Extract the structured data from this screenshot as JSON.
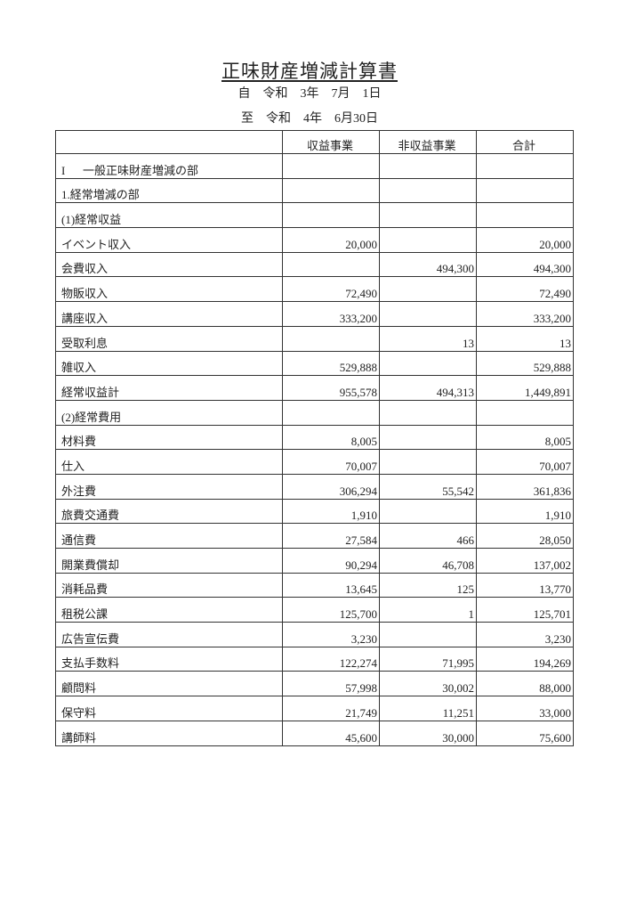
{
  "title": "正味財産増減計算書",
  "period": {
    "from": "自　令和　3年　7月　1日",
    "to": "至　令和　4年　6月30日"
  },
  "columns": [
    "",
    "収益事業",
    "非収益事業",
    "合計"
  ],
  "sections": {
    "section1": {
      "numeral": "I",
      "label": "一般正味財産増減の部"
    },
    "sub1": "1.経常増減の部",
    "income_header": "(1)経常収益",
    "expense_header": "(2)経常費用"
  },
  "income_rows": [
    {
      "label": "イベント収入",
      "profit": "20,000",
      "nonprofit": "",
      "total": "20,000"
    },
    {
      "label": "会費収入",
      "profit": "",
      "nonprofit": "494,300",
      "total": "494,300"
    },
    {
      "label": "物販収入",
      "profit": "72,490",
      "nonprofit": "",
      "total": "72,490"
    },
    {
      "label": "講座収入",
      "profit": "333,200",
      "nonprofit": "",
      "total": "333,200"
    },
    {
      "label": "受取利息",
      "profit": "",
      "nonprofit": "13",
      "total": "13"
    },
    {
      "label": "雑収入",
      "profit": "529,888",
      "nonprofit": "",
      "total": "529,888"
    }
  ],
  "income_total": {
    "label": "経常収益計",
    "profit": "955,578",
    "nonprofit": "494,313",
    "total": "1,449,891"
  },
  "expense_rows": [
    {
      "label": "材料費",
      "profit": "8,005",
      "nonprofit": "",
      "total": "8,005"
    },
    {
      "label": "仕入",
      "profit": "70,007",
      "nonprofit": "",
      "total": "70,007"
    },
    {
      "label": "外注費",
      "profit": "306,294",
      "nonprofit": "55,542",
      "total": "361,836"
    },
    {
      "label": "旅費交通費",
      "profit": "1,910",
      "nonprofit": "",
      "total": "1,910"
    },
    {
      "label": "通信費",
      "profit": "27,584",
      "nonprofit": "466",
      "total": "28,050"
    },
    {
      "label": "開業費償却",
      "profit": "90,294",
      "nonprofit": "46,708",
      "total": "137,002"
    },
    {
      "label": "消耗品費",
      "profit": "13,645",
      "nonprofit": "125",
      "total": "13,770"
    },
    {
      "label": "租税公課",
      "profit": "125,700",
      "nonprofit": "1",
      "total": "125,701"
    },
    {
      "label": "広告宣伝費",
      "profit": "3,230",
      "nonprofit": "",
      "total": "3,230"
    },
    {
      "label": "支払手数料",
      "profit": "122,274",
      "nonprofit": "71,995",
      "total": "194,269"
    },
    {
      "label": "顧問料",
      "profit": "57,998",
      "nonprofit": "30,002",
      "total": "88,000"
    },
    {
      "label": "保守料",
      "profit": "21,749",
      "nonprofit": "11,251",
      "total": "33,000"
    },
    {
      "label": "講師料",
      "profit": "45,600",
      "nonprofit": "30,000",
      "total": "75,600"
    }
  ]
}
